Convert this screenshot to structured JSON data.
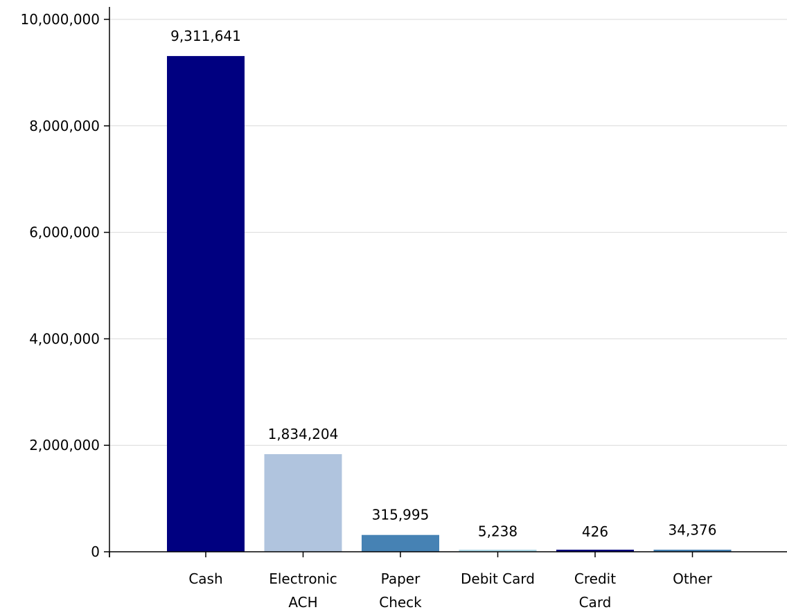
{
  "chart_data": {
    "type": "bar",
    "title": "",
    "xlabel": "",
    "ylabel": "",
    "categories": [
      [
        "Cash"
      ],
      [
        "Electronic",
        "ACH"
      ],
      [
        "Paper",
        "Check"
      ],
      [
        "Debit Card"
      ],
      [
        "Credit",
        "Card"
      ],
      [
        "Other"
      ]
    ],
    "values": [
      9311641,
      1834204,
      315995,
      5238,
      426,
      34376
    ],
    "data_labels": [
      "9,311,641",
      "1,834,204",
      "315,995",
      "5,238",
      "426",
      "34,376"
    ],
    "colors": [
      "#000080",
      "#b0c4de",
      "#4682b4",
      "#add8e6",
      "#000080",
      "#4682b4"
    ],
    "ylim": [
      0,
      10000000
    ],
    "yticks": [
      0,
      2000000,
      4000000,
      6000000,
      8000000,
      10000000
    ],
    "ytick_labels": [
      "0",
      "2,000,000",
      "4,000,000",
      "6,000,000",
      "8,000,000",
      "10,000,000"
    ],
    "grid": true,
    "legend": "none"
  }
}
